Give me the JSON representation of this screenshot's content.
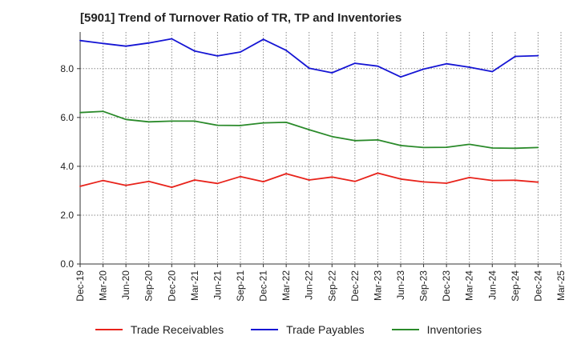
{
  "chart_data": {
    "type": "line",
    "title": "[5901]  Trend of Turnover Ratio of TR, TP and Inventories",
    "xlabel": "",
    "ylabel": "",
    "ylim": [
      0,
      9.5
    ],
    "yticks": [
      "0.0",
      "2.0",
      "4.0",
      "6.0",
      "8.0"
    ],
    "ytick_values": [
      0,
      2,
      4,
      6,
      8
    ],
    "grid": true,
    "legend_position": "bottom",
    "x_labels": [
      "Dec-19",
      "Mar-20",
      "Jun-20",
      "Sep-20",
      "Dec-20",
      "Mar-21",
      "Jun-21",
      "Sep-21",
      "Dec-21",
      "Mar-22",
      "Jun-22",
      "Sep-22",
      "Dec-22",
      "Mar-23",
      "Jun-23",
      "Sep-23",
      "Dec-23",
      "Mar-24",
      "Jun-24",
      "Sep-24",
      "Dec-24",
      "Mar-25"
    ],
    "x_points": [
      "Dec-19",
      "Mar-20",
      "Jun-20",
      "Sep-20",
      "Dec-20",
      "Mar-21",
      "Jun-21",
      "Sep-21",
      "Dec-21",
      "Mar-22",
      "Jun-22",
      "Sep-22",
      "Dec-22",
      "Mar-23",
      "Jun-23",
      "Sep-23",
      "Dec-23",
      "Mar-24",
      "Jun-24",
      "Sep-24",
      "Dec-24"
    ],
    "series": [
      {
        "name": "Trade Receivables",
        "color": "#e8231b",
        "values": [
          3.18,
          3.42,
          3.22,
          3.38,
          3.14,
          3.44,
          3.3,
          3.58,
          3.37,
          3.7,
          3.44,
          3.56,
          3.38,
          3.72,
          3.48,
          3.36,
          3.31,
          3.54,
          3.42,
          3.43,
          3.35
        ]
      },
      {
        "name": "Trade Payables",
        "color": "#1515d4",
        "values": [
          9.15,
          9.03,
          8.92,
          9.05,
          9.22,
          8.72,
          8.52,
          8.68,
          9.2,
          8.75,
          8.02,
          7.83,
          8.22,
          8.1,
          7.66,
          7.98,
          8.2,
          8.06,
          7.88,
          8.5,
          8.53
        ]
      },
      {
        "name": "Inventories",
        "color": "#2a8a2a",
        "values": [
          6.2,
          6.25,
          5.92,
          5.82,
          5.85,
          5.85,
          5.68,
          5.67,
          5.78,
          5.8,
          5.5,
          5.22,
          5.05,
          5.08,
          4.85,
          4.77,
          4.78,
          4.9,
          4.75,
          4.74,
          4.77
        ]
      }
    ]
  }
}
